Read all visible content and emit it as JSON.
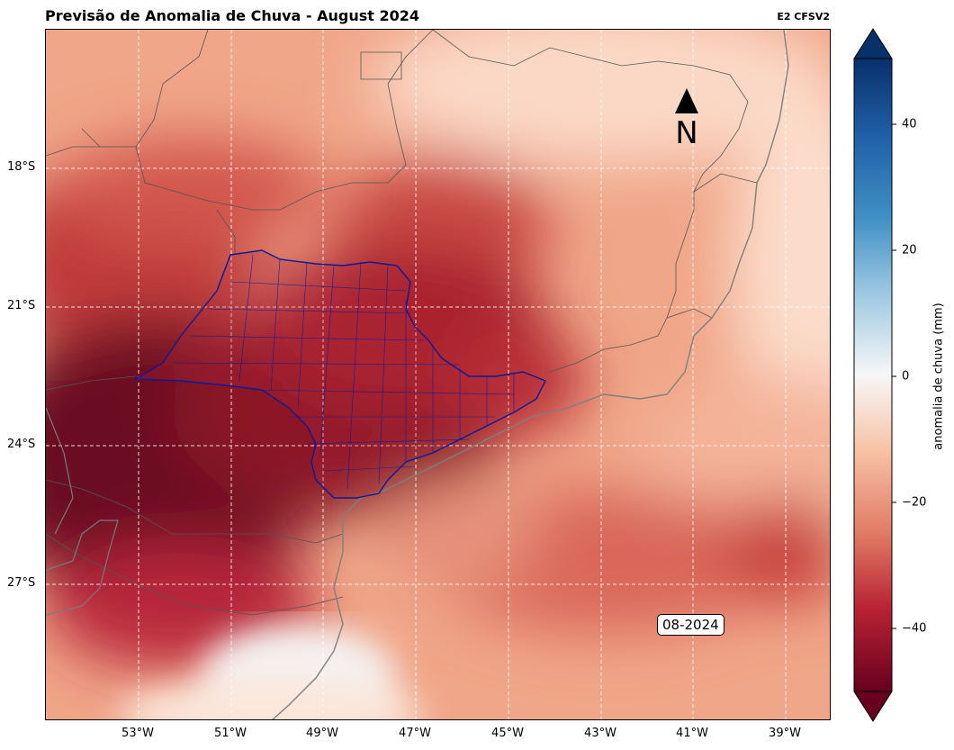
{
  "header": {
    "title": "Previsão de Anomalia de Chuva - August 2024",
    "model": "E2 CFSV2"
  },
  "map": {
    "lat_labels": [
      "18°S",
      "21°S",
      "24°S",
      "27°S"
    ],
    "lon_labels": [
      "53°W",
      "51°W",
      "49°W",
      "47°W",
      "45°W",
      "43°W",
      "41°W",
      "39°W"
    ],
    "north_label": "N",
    "date_label": "08-2024",
    "highlighted_region_color": "#0a1a9a",
    "border_color": "#555555",
    "coastline_color": "#808080"
  },
  "colorbar": {
    "label": "anomalia de chuva (mm)",
    "ticks": [
      "40",
      "20",
      "0",
      "−20",
      "−40"
    ],
    "colormap": "RdBu",
    "top_color": "#08306b",
    "bottom_color": "#67001f"
  }
}
